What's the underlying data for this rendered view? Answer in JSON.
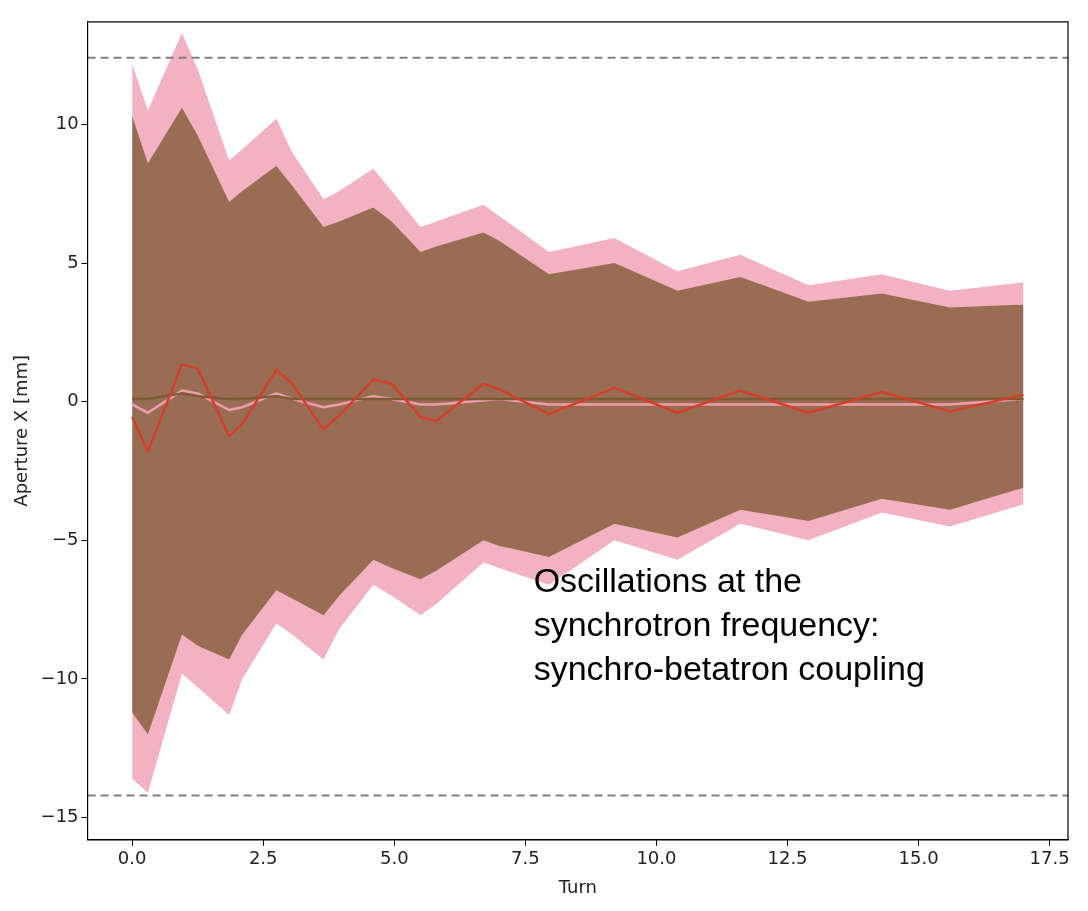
{
  "chart_data": {
    "type": "line",
    "xlabel": "Turn",
    "ylabel": "Aperture X [mm]",
    "xlim": [
      -0.85,
      17.85
    ],
    "ylim": [
      -15.8,
      13.7
    ],
    "xticks": [
      {
        "value": 0,
        "label": "0.0"
      },
      {
        "value": 2.5,
        "label": "2.5"
      },
      {
        "value": 5,
        "label": "5.0"
      },
      {
        "value": 7.5,
        "label": "7.5"
      },
      {
        "value": 10,
        "label": "10.0"
      },
      {
        "value": 12.5,
        "label": "12.5"
      },
      {
        "value": 15,
        "label": "15.0"
      },
      {
        "value": 17.5,
        "label": "17.5"
      }
    ],
    "yticks": [
      {
        "value": -15,
        "label": "−15"
      },
      {
        "value": -10,
        "label": "−10"
      },
      {
        "value": -5,
        "label": "−5"
      },
      0,
      5,
      10
    ],
    "grid": false,
    "legend": false,
    "marker": "none",
    "line_style": "solid",
    "x": [
      0,
      0.3,
      0.95,
      1.25,
      1.85,
      2.1,
      2.75,
      3.05,
      3.65,
      3.95,
      4.6,
      4.95,
      5.5,
      5.8,
      6.7,
      7.0,
      7.95,
      9.2,
      10.4,
      11.6,
      12.9,
      14.3,
      15.6,
      17.0
    ],
    "series": [
      {
        "color": "#f09cb0",
        "values": [
          -0.1,
          -0.4,
          0.4,
          0.3,
          -0.3,
          -0.2,
          0.3,
          0.1,
          -0.2,
          -0.1,
          0.2,
          0.1,
          -0.1,
          -0.1,
          null,
          0.1,
          -0.1,
          null,
          -0.1,
          null,
          -0.1,
          null,
          -0.1,
          0.1
        ],
        "upper": [
          12.2,
          10.5,
          13.3,
          12.0,
          8.7,
          9.1,
          10.2,
          9.0,
          7.3,
          7.6,
          8.4,
          7.6,
          6.3,
          6.5,
          7.1,
          6.7,
          5.4,
          5.9,
          4.7,
          5.3,
          4.2,
          4.6,
          4.0,
          4.3
        ],
        "lower": [
          -13.6,
          -14.1,
          -9.8,
          -10.3,
          -11.3,
          -10.0,
          -8.0,
          -8.4,
          -9.3,
          -8.2,
          -6.6,
          -7.0,
          -7.7,
          -7.3,
          -5.8,
          -6.0,
          -6.6,
          -5.0,
          -5.7,
          -4.4,
          -5.0,
          -4.0,
          -4.5,
          -3.7
        ]
      },
      {
        "color": "#7e5a36",
        "values": [
          0.1,
          0.1,
          0.3,
          0.2,
          0.1,
          0.1,
          0.2,
          0.1,
          0.1,
          0.1,
          0.1,
          0.1,
          0.1,
          0.1,
          0.1,
          0.1,
          0.1,
          0.1,
          0.1,
          0.1,
          0.1,
          0.1,
          0.1,
          0.1
        ],
        "upper": [
          10.3,
          8.6,
          10.6,
          9.6,
          7.2,
          7.6,
          8.5,
          7.8,
          6.3,
          6.5,
          7.0,
          6.5,
          5.4,
          5.6,
          6.1,
          5.8,
          4.6,
          5.0,
          4.0,
          4.5,
          3.6,
          3.9,
          3.4,
          3.5
        ],
        "lower": [
          -11.2,
          -12.0,
          -8.4,
          -8.8,
          -9.3,
          -8.4,
          -6.8,
          -7.1,
          -7.7,
          -7.0,
          -5.7,
          -6.0,
          -6.4,
          -6.1,
          -5.0,
          -5.2,
          -5.6,
          -4.4,
          -4.9,
          -3.9,
          -4.3,
          -3.5,
          -3.9,
          -3.1
        ]
      },
      {
        "color": "#d2402a",
        "values": [
          -0.55,
          -1.8,
          1.35,
          1.2,
          -1.25,
          -0.8,
          1.15,
          0.65,
          -1.0,
          -0.5,
          0.8,
          0.65,
          -0.55,
          -0.7,
          0.65,
          0.45,
          -0.45,
          0.5,
          -0.4,
          0.4,
          -0.4,
          0.35,
          -0.35,
          0.25
        ]
      }
    ],
    "ref_lines": [
      {
        "axis": "y",
        "value": 12.4,
        "color": "#808080",
        "line_style": "dashed"
      },
      {
        "axis": "y",
        "value": -14.2,
        "color": "#808080",
        "line_style": "dashed"
      }
    ],
    "annotations": [
      "Oscillations at the\nsynchrotron frequency:\nsynchro-betatron coupling"
    ]
  }
}
